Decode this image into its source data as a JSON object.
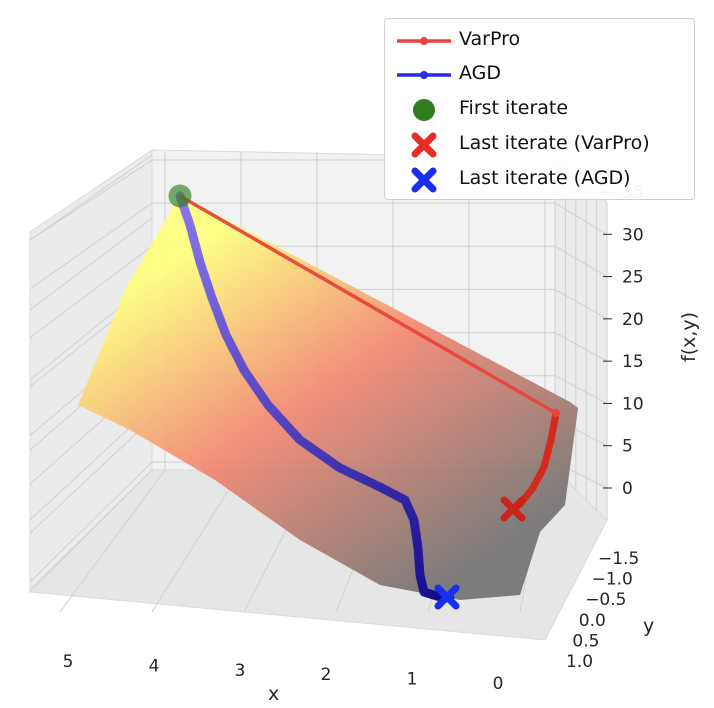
{
  "chart_data": {
    "type": "surface3d",
    "title": "",
    "xlabel": "x",
    "ylabel": "y",
    "zlabel": "f(x,y)",
    "x_ticks": [
      "5",
      "4",
      "3",
      "2",
      "1",
      "0"
    ],
    "y_ticks": [
      "−1.5",
      "−1.0",
      "−0.5",
      "0.0",
      "0.5",
      "1.0"
    ],
    "z_ticks": [
      "0",
      "5",
      "10",
      "15",
      "20",
      "25",
      "30",
      "35"
    ],
    "surface_colormap": [
      "#ffff7a",
      "#f2846e",
      "#707070"
    ],
    "series": [
      {
        "name": "VarPro",
        "color": "#e8453c",
        "points": [
          {
            "x": 4.4,
            "y": 1.0,
            "f": 33
          },
          {
            "x": 0.2,
            "y": -1.0,
            "f": 9
          },
          {
            "x": 0.2,
            "y": -0.7,
            "f": 3
          },
          {
            "x": 0.4,
            "y": -0.5,
            "f": 0.3
          }
        ]
      },
      {
        "name": "AGD",
        "color": "#2a2ae8",
        "points": [
          {
            "x": 4.4,
            "y": 1.0,
            "f": 33
          },
          {
            "x": 3.6,
            "y": 0.7,
            "f": 20
          },
          {
            "x": 2.8,
            "y": 0.5,
            "f": 12
          },
          {
            "x": 1.5,
            "y": 0.3,
            "f": 6
          },
          {
            "x": 1.0,
            "y": 0.8,
            "f": 1
          },
          {
            "x": 0.8,
            "y": 1.0,
            "f": 0.1
          }
        ]
      }
    ],
    "markers": [
      {
        "name": "First iterate",
        "color": "#2e7d1e"
      },
      {
        "name": "Last iterate (VarPro)",
        "color": "#e82e23"
      },
      {
        "name": "Last iterate (AGD)",
        "color": "#1a2ef0"
      }
    ]
  }
}
